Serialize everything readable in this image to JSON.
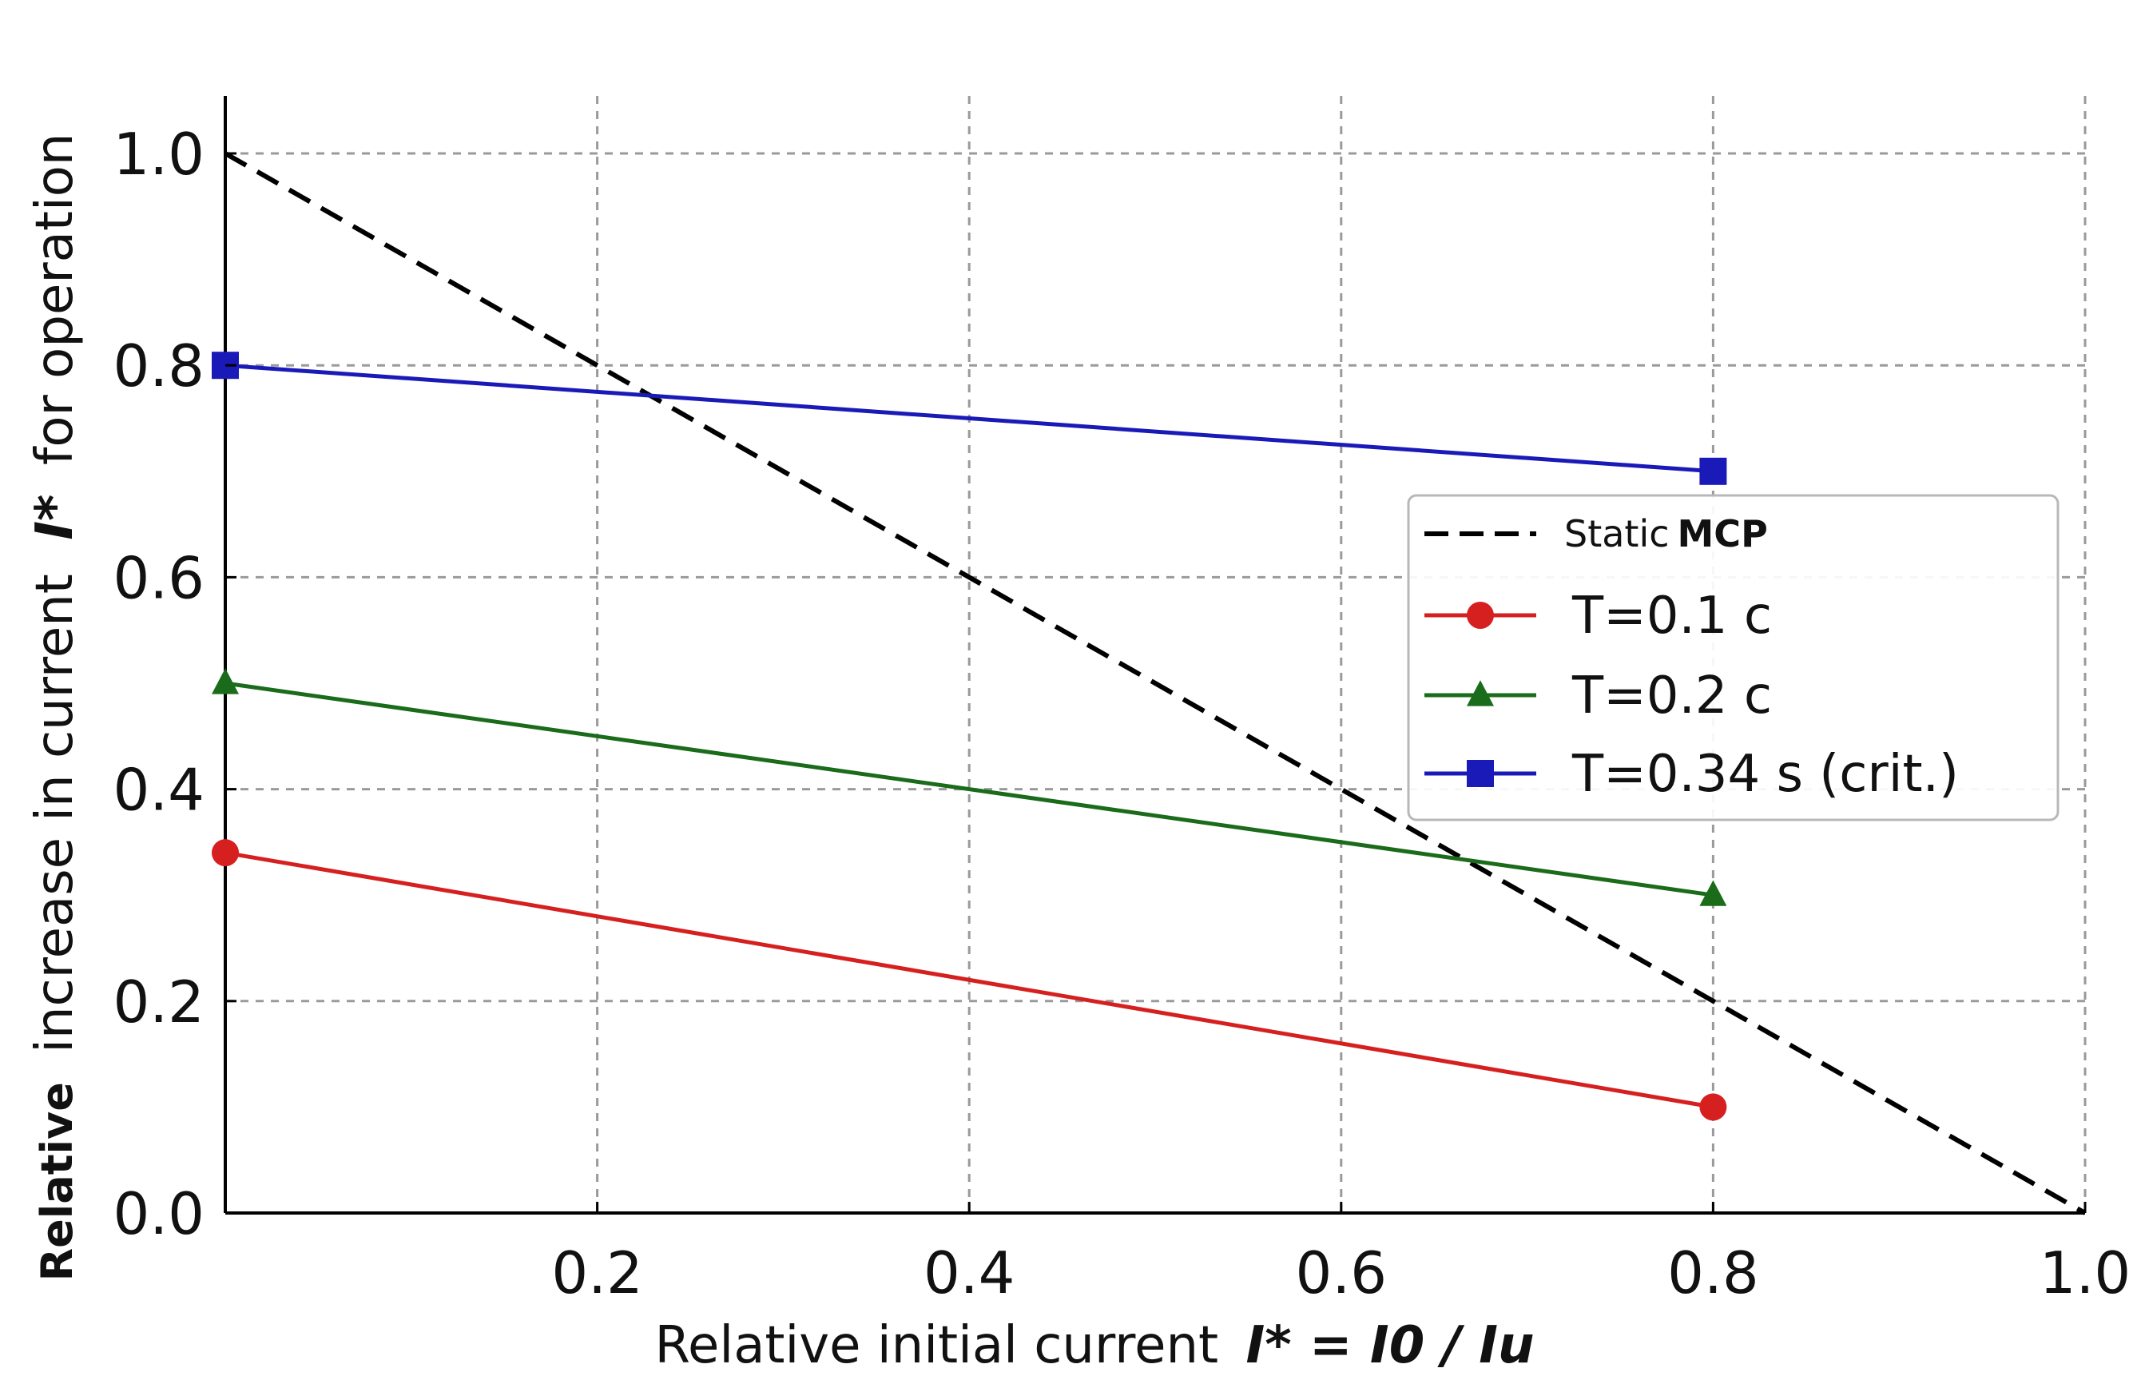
{
  "chart_data": {
    "type": "line",
    "xlabel": "Relative initial current",
    "xlabel_math": "I* = I0 / Iu",
    "ylabel_prefix": "Relative",
    "ylabel_main": "increase in current",
    "ylabel_math": "I*",
    "ylabel_suffix": "for operation",
    "xlim": [
      0.0,
      1.0
    ],
    "ylim": [
      0.0,
      1.05
    ],
    "x_ticks": [
      0.2,
      0.4,
      0.6,
      0.8,
      1.0
    ],
    "x_tick_labels": [
      "0.2",
      "0.4",
      "0.6",
      "0.8",
      "1.0"
    ],
    "y_ticks": [
      0.0,
      0.2,
      0.4,
      0.6,
      0.8,
      1.0
    ],
    "y_tick_labels": [
      "0.0",
      "0.2",
      "0.4",
      "0.6",
      "0.8",
      "1.0"
    ],
    "grid": true,
    "legend_position": "center-right",
    "series": [
      {
        "name": "Static MCP",
        "label_normal": "Static",
        "label_bold": "MCP",
        "color": "#000000",
        "style": "dashed",
        "marker": "none",
        "x": [
          0.0,
          1.0
        ],
        "y": [
          1.0,
          0.0
        ]
      },
      {
        "name": "T=0.1 c",
        "color": "#d62020",
        "style": "solid",
        "marker": "circle",
        "x": [
          0.0,
          0.8
        ],
        "y": [
          0.34,
          0.1
        ]
      },
      {
        "name": "T=0.2 c",
        "color": "#1a6b1a",
        "style": "solid",
        "marker": "triangle",
        "x": [
          0.0,
          0.8
        ],
        "y": [
          0.5,
          0.3
        ]
      },
      {
        "name": "T=0.34 s (crit.)",
        "color": "#1a1ab8",
        "style": "solid",
        "marker": "square",
        "x": [
          0.0,
          0.8
        ],
        "y": [
          0.8,
          0.7
        ]
      }
    ]
  }
}
